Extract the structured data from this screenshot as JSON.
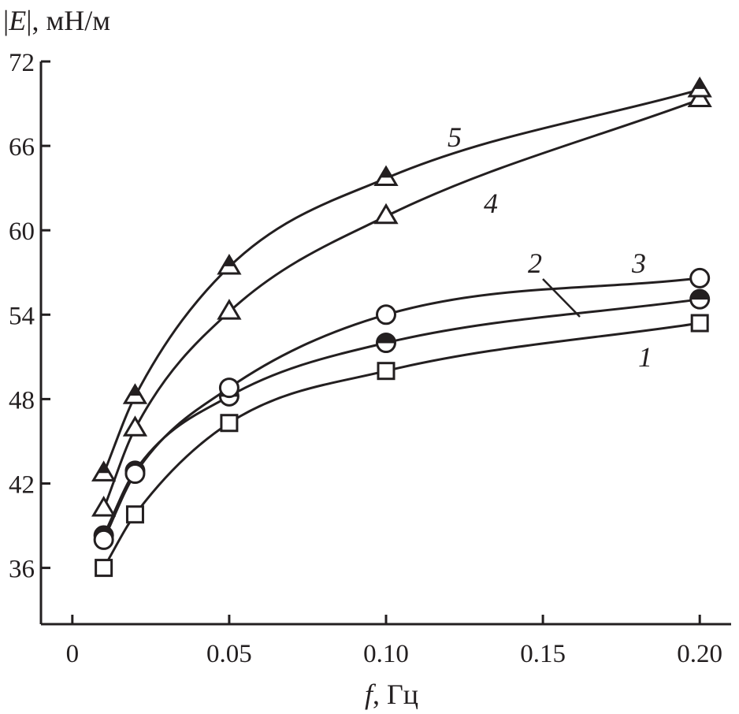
{
  "chart_data": {
    "type": "line",
    "ylabel": "|E|, мН/м",
    "ylabel_parts": {
      "bar_left": "|",
      "var": "E",
      "bar_right": "|",
      "units": ", мН/м"
    },
    "xlabel": "f, Гц",
    "xlabel_parts": {
      "var": "f",
      "units": ", Гц"
    },
    "xlim": [
      -0.01,
      0.21
    ],
    "ylim": [
      32,
      72
    ],
    "x_ticks": [
      0,
      0.05,
      0.1,
      0.15,
      0.2
    ],
    "x_tick_labels": [
      "0",
      "0.05",
      "0.10",
      "0.15",
      "0.20"
    ],
    "y_ticks": [
      36,
      42,
      48,
      54,
      60,
      66,
      72
    ],
    "y_tick_labels": [
      "36",
      "42",
      "48",
      "54",
      "60",
      "66",
      "72"
    ],
    "grid": false,
    "series": [
      {
        "name": "1",
        "marker": "square-open",
        "x": [
          0.01,
          0.02,
          0.05,
          0.1,
          0.2
        ],
        "y": [
          36.0,
          39.8,
          46.3,
          50.0,
          53.4
        ]
      },
      {
        "name": "2",
        "marker": "circle-half",
        "x": [
          0.01,
          0.02,
          0.05,
          0.1,
          0.2
        ],
        "y": [
          38.3,
          42.9,
          48.2,
          52.0,
          55.1
        ]
      },
      {
        "name": "3",
        "marker": "circle-open",
        "x": [
          0.01,
          0.02,
          0.05,
          0.1,
          0.2
        ],
        "y": [
          38.0,
          42.7,
          48.8,
          54.0,
          56.6
        ]
      },
      {
        "name": "4",
        "marker": "triangle-open",
        "x": [
          0.01,
          0.02,
          0.05,
          0.1,
          0.2
        ],
        "y": [
          40.2,
          45.9,
          54.2,
          61.0,
          69.3
        ]
      },
      {
        "name": "5",
        "marker": "triangle-half",
        "x": [
          0.01,
          0.02,
          0.05,
          0.1,
          0.2
        ],
        "y": [
          42.7,
          48.2,
          57.4,
          63.7,
          70.0
        ]
      }
    ]
  }
}
